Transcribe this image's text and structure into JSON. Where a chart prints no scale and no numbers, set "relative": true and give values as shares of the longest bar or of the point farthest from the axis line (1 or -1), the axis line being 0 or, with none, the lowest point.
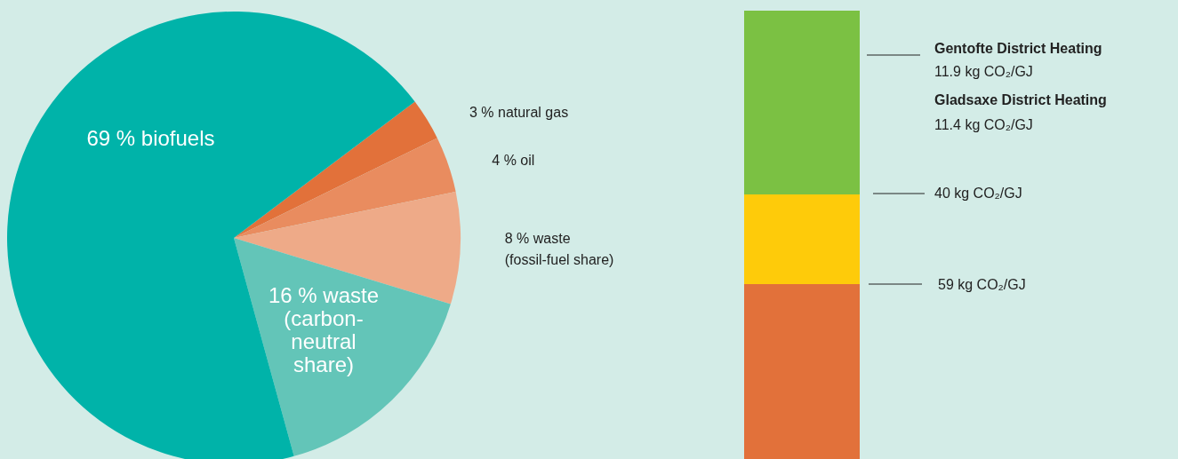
{
  "chart_data": [
    {
      "type": "pie",
      "categories": [
        "3 % natural gas",
        "4 % oil",
        "8 % waste\n(fossil-fuel share)",
        "16 % waste\n(carbon-\nneutral\nshare)",
        "69 % biofuels"
      ],
      "values": [
        3,
        4,
        8,
        16,
        69
      ],
      "colors": [
        "#e2713a",
        "#e98c5f",
        "#eeaa88",
        "#63c5b8",
        "#00b3a9"
      ],
      "legend": false
    },
    {
      "type": "bar",
      "stacked": true,
      "relative": true,
      "categories": [
        null
      ],
      "series": [
        {
          "color": "#e2713a",
          "values": [
            0.39
          ]
        },
        {
          "color": "#fecb0a",
          "values": [
            0.2
          ]
        },
        {
          "color": "#7bc143",
          "values": [
            0.41
          ]
        }
      ],
      "annotations": [
        "Gentofte District Heating",
        "11.9 kg CO₂/GJ",
        "Gladsaxe District Heating",
        "11.4 kg CO₂/GJ",
        "40 kg CO₂/GJ",
        "59 kg CO₂/GJ"
      ],
      "legend": false
    }
  ]
}
